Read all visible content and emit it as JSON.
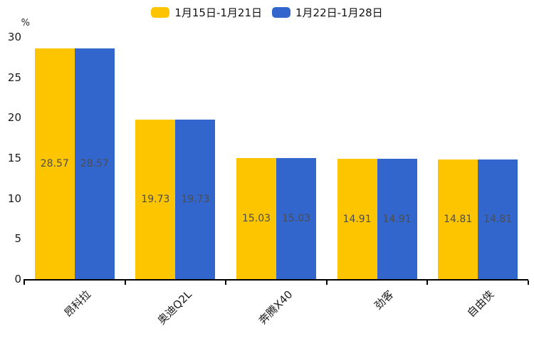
{
  "chart_data": {
    "type": "bar",
    "title": "",
    "xlabel": "",
    "ylabel": "%",
    "ylim": [
      0,
      30
    ],
    "yticks": [
      0,
      5,
      10,
      15,
      20,
      25,
      30
    ],
    "grid": false,
    "legend_position": "top-center",
    "value_labels": "inside-center",
    "categories": [
      "昂科拉",
      "奥迪Q2L",
      "奔腾X40",
      "劲客",
      "自由侠"
    ],
    "series": [
      {
        "name": "1月15日-1月21日",
        "color": "#FCC500",
        "values": [
          28.57,
          19.73,
          15.03,
          14.91,
          14.81
        ]
      },
      {
        "name": "1月22日-1月28日",
        "color": "#3366CC",
        "values": [
          28.57,
          19.73,
          15.03,
          14.91,
          14.81
        ]
      }
    ]
  },
  "colors": {
    "background": "#ffffff",
    "axis_line": "#000000",
    "tick_label": "#1a1a1a",
    "value_label": "#4d4d4d"
  }
}
